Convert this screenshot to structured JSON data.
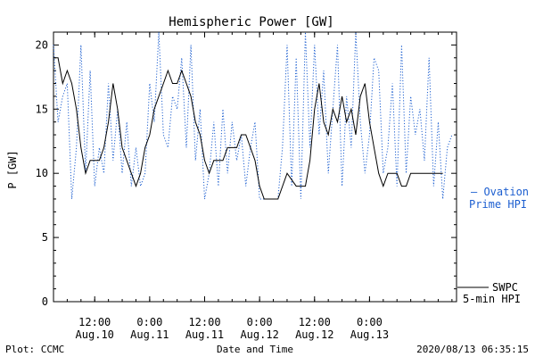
{
  "chart_data": {
    "type": "line",
    "title": "Hemispheric Power [GW]",
    "ylabel": "P [GW]",
    "xlabel": "Date and Time",
    "ylim": [
      0,
      21
    ],
    "xlim": [
      "2020-08-10T03:00",
      "2020-08-13T19:00"
    ],
    "yticks": [
      0,
      5,
      10,
      15,
      20
    ],
    "xticks": [
      {
        "at": "2020-08-10T12:00",
        "line1": "12:00",
        "line2": "Aug.10"
      },
      {
        "at": "2020-08-11T00:00",
        "line1": "0:00",
        "line2": "Aug.11"
      },
      {
        "at": "2020-08-11T12:00",
        "line1": "12:00",
        "line2": "Aug.11"
      },
      {
        "at": "2020-08-12T00:00",
        "line1": "0:00",
        "line2": "Aug.12"
      },
      {
        "at": "2020-08-12T12:00",
        "line1": "12:00",
        "line2": "Aug.12"
      },
      {
        "at": "2020-08-13T00:00",
        "line1": "0:00",
        "line2": "Aug.13"
      }
    ],
    "grid": false,
    "series": [
      {
        "name": "SWPC 5-min HPI",
        "legend_line1": "SWPC",
        "legend_line2": "5-min HPI",
        "color": "#000000",
        "style": "solid",
        "x": [
          "2020-08-10T03:00",
          "2020-08-10T04:00",
          "2020-08-10T05:00",
          "2020-08-10T06:00",
          "2020-08-10T07:00",
          "2020-08-10T08:00",
          "2020-08-10T09:00",
          "2020-08-10T10:00",
          "2020-08-10T11:00",
          "2020-08-10T12:00",
          "2020-08-10T13:00",
          "2020-08-10T14:00",
          "2020-08-10T15:00",
          "2020-08-10T16:00",
          "2020-08-10T17:00",
          "2020-08-10T18:00",
          "2020-08-10T19:00",
          "2020-08-10T20:00",
          "2020-08-10T21:00",
          "2020-08-10T22:00",
          "2020-08-10T23:00",
          "2020-08-11T00:00",
          "2020-08-11T01:00",
          "2020-08-11T02:00",
          "2020-08-11T03:00",
          "2020-08-11T04:00",
          "2020-08-11T05:00",
          "2020-08-11T06:00",
          "2020-08-11T07:00",
          "2020-08-11T08:00",
          "2020-08-11T09:00",
          "2020-08-11T10:00",
          "2020-08-11T11:00",
          "2020-08-11T12:00",
          "2020-08-11T13:00",
          "2020-08-11T14:00",
          "2020-08-11T15:00",
          "2020-08-11T16:00",
          "2020-08-11T17:00",
          "2020-08-11T18:00",
          "2020-08-11T19:00",
          "2020-08-11T20:00",
          "2020-08-11T21:00",
          "2020-08-11T22:00",
          "2020-08-11T23:00",
          "2020-08-12T00:00",
          "2020-08-12T01:00",
          "2020-08-12T02:00",
          "2020-08-12T03:00",
          "2020-08-12T04:00",
          "2020-08-12T06:00",
          "2020-08-12T08:00",
          "2020-08-12T10:00",
          "2020-08-12T11:00",
          "2020-08-12T12:00",
          "2020-08-12T13:00",
          "2020-08-12T14:00",
          "2020-08-12T15:00",
          "2020-08-12T16:00",
          "2020-08-12T17:00",
          "2020-08-12T18:00",
          "2020-08-12T19:00",
          "2020-08-12T20:00",
          "2020-08-12T21:00",
          "2020-08-12T22:00",
          "2020-08-12T23:00",
          "2020-08-13T00:00",
          "2020-08-13T01:00",
          "2020-08-13T02:00",
          "2020-08-13T03:00",
          "2020-08-13T04:00",
          "2020-08-13T05:00",
          "2020-08-13T06:00",
          "2020-08-13T07:00",
          "2020-08-13T08:00",
          "2020-08-13T09:00",
          "2020-08-13T10:00",
          "2020-08-13T11:00",
          "2020-08-13T12:00",
          "2020-08-13T13:00",
          "2020-08-13T14:00",
          "2020-08-13T15:00",
          "2020-08-13T16:00"
        ],
        "values": [
          19,
          19,
          17,
          18,
          17,
          15,
          12,
          10,
          11,
          11,
          11,
          12,
          14,
          17,
          15,
          12,
          11,
          10,
          9,
          10,
          12,
          13,
          15,
          16,
          17,
          18,
          17,
          17,
          18,
          17,
          16,
          14,
          13,
          11,
          10,
          11,
          11,
          11,
          12,
          12,
          12,
          13,
          13,
          12,
          11,
          9,
          8,
          8,
          8,
          8,
          10,
          9,
          9,
          11,
          15,
          17,
          14,
          13,
          15,
          14,
          16,
          14,
          15,
          13,
          16,
          17,
          14,
          12,
          10,
          9,
          10,
          10,
          10,
          9,
          9,
          10,
          10,
          10,
          10,
          10,
          10,
          10,
          10
        ]
      },
      {
        "name": "Ovation Prime HPI",
        "legend_line1": "— Ovation",
        "legend_line2": "Prime HPI",
        "color": "#1d5fd0",
        "style": "dotted",
        "x": [
          "2020-08-10T03:00",
          "2020-08-10T04:00",
          "2020-08-10T05:00",
          "2020-08-10T06:00",
          "2020-08-10T07:00",
          "2020-08-10T08:00",
          "2020-08-10T09:00",
          "2020-08-10T10:00",
          "2020-08-10T11:00",
          "2020-08-10T12:00",
          "2020-08-10T13:00",
          "2020-08-10T14:00",
          "2020-08-10T15:00",
          "2020-08-10T16:00",
          "2020-08-10T17:00",
          "2020-08-10T18:00",
          "2020-08-10T19:00",
          "2020-08-10T20:00",
          "2020-08-10T21:00",
          "2020-08-10T22:00",
          "2020-08-10T23:00",
          "2020-08-11T00:00",
          "2020-08-11T01:00",
          "2020-08-11T02:00",
          "2020-08-11T03:00",
          "2020-08-11T04:00",
          "2020-08-11T05:00",
          "2020-08-11T06:00",
          "2020-08-11T07:00",
          "2020-08-11T08:00",
          "2020-08-11T09:00",
          "2020-08-11T10:00",
          "2020-08-11T11:00",
          "2020-08-11T12:00",
          "2020-08-11T13:00",
          "2020-08-11T14:00",
          "2020-08-11T15:00",
          "2020-08-11T16:00",
          "2020-08-11T17:00",
          "2020-08-11T18:00",
          "2020-08-11T19:00",
          "2020-08-11T20:00",
          "2020-08-11T21:00",
          "2020-08-11T22:00",
          "2020-08-11T23:00",
          "2020-08-12T00:00",
          "2020-08-12T01:00",
          "2020-08-12T02:00",
          "2020-08-12T03:00",
          "2020-08-12T04:00",
          "2020-08-12T05:00",
          "2020-08-12T06:00",
          "2020-08-12T07:00",
          "2020-08-12T08:00",
          "2020-08-12T09:00",
          "2020-08-12T10:00",
          "2020-08-12T11:00",
          "2020-08-12T12:00",
          "2020-08-12T13:00",
          "2020-08-12T14:00",
          "2020-08-12T15:00",
          "2020-08-12T16:00",
          "2020-08-12T17:00",
          "2020-08-12T18:00",
          "2020-08-12T19:00",
          "2020-08-12T20:00",
          "2020-08-12T21:00",
          "2020-08-12T22:00",
          "2020-08-12T23:00",
          "2020-08-13T00:00",
          "2020-08-13T01:00",
          "2020-08-13T02:00",
          "2020-08-13T03:00",
          "2020-08-13T04:00",
          "2020-08-13T05:00",
          "2020-08-13T06:00",
          "2020-08-13T07:00",
          "2020-08-13T08:00",
          "2020-08-13T09:00",
          "2020-08-13T10:00",
          "2020-08-13T11:00",
          "2020-08-13T12:00",
          "2020-08-13T13:00",
          "2020-08-13T14:00",
          "2020-08-13T15:00",
          "2020-08-13T16:00",
          "2020-08-13T17:00",
          "2020-08-13T18:00"
        ],
        "values": [
          20,
          14,
          16,
          17,
          8,
          12,
          20,
          10,
          18,
          9,
          12,
          10,
          17,
          11,
          15,
          10,
          14,
          9,
          12,
          9,
          10,
          17,
          14,
          21,
          13,
          12,
          16,
          15,
          19,
          12,
          20,
          11,
          15,
          8,
          10,
          14,
          9,
          15,
          10,
          14,
          11,
          13,
          9,
          12,
          14,
          8,
          8,
          8,
          8,
          8,
          12,
          20,
          9,
          19,
          8,
          21,
          12,
          20,
          13,
          18,
          10,
          15,
          20,
          9,
          16,
          12,
          21,
          14,
          10,
          13,
          19,
          18,
          10,
          12,
          17,
          9,
          20,
          10,
          16,
          13,
          15,
          11,
          19,
          9,
          14,
          8,
          12,
          13
        ]
      }
    ]
  },
  "footer": {
    "plot_credit": "Plot: CCMC",
    "timestamp": "2020/08/13 06:35:15"
  }
}
